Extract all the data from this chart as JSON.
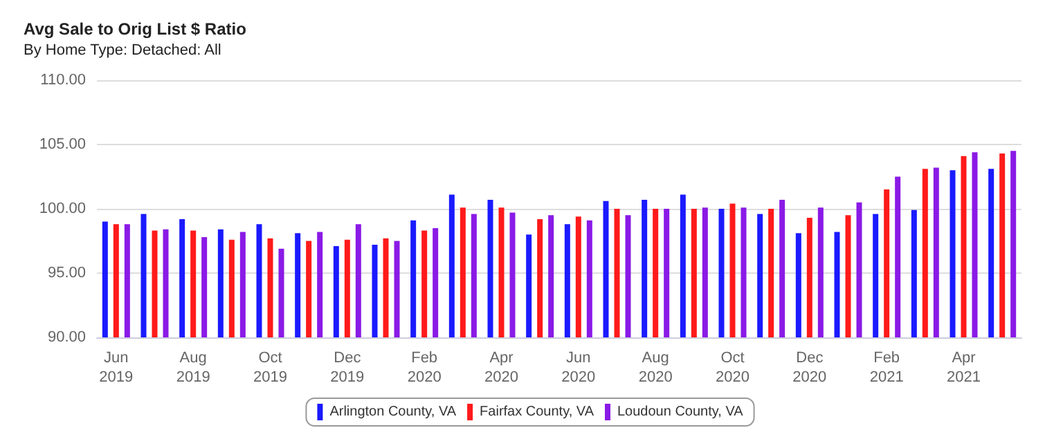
{
  "chart_data": {
    "type": "bar",
    "title": "Avg Sale to Orig List $ Ratio",
    "subtitle": "By Home Type: Detached: All",
    "categories": [
      "Jun\n2019",
      null,
      "Aug\n2019",
      null,
      "Oct\n2019",
      null,
      "Dec\n2019",
      null,
      "Feb\n2020",
      null,
      "Apr\n2020",
      null,
      "Jun\n2020",
      null,
      "Aug\n2020",
      null,
      "Oct\n2020",
      null,
      "Dec\n2020",
      null,
      "Feb\n2021",
      null,
      "Apr\n2021",
      null
    ],
    "series": [
      {
        "name": "Arlington County, VA",
        "color": "#1a1aff",
        "values": [
          99.0,
          99.6,
          99.2,
          98.4,
          98.8,
          98.1,
          97.1,
          97.2,
          99.1,
          101.1,
          100.7,
          98.0,
          98.8,
          100.6,
          100.7,
          101.1,
          100.0,
          99.6,
          98.1,
          98.2,
          99.6,
          99.9,
          103.0,
          103.1
        ]
      },
      {
        "name": "Fairfax County, VA",
        "color": "#ff1a1a",
        "values": [
          98.8,
          98.3,
          98.3,
          97.6,
          97.7,
          97.5,
          97.6,
          97.7,
          98.3,
          100.1,
          100.1,
          99.2,
          99.4,
          100.0,
          100.0,
          100.0,
          100.4,
          100.0,
          99.3,
          99.5,
          101.5,
          103.1,
          104.1,
          104.3
        ]
      },
      {
        "name": "Loudoun County, VA",
        "color": "#8a1ae6",
        "values": [
          98.8,
          98.4,
          97.8,
          98.2,
          96.9,
          98.2,
          98.8,
          97.5,
          98.5,
          99.6,
          99.7,
          99.5,
          99.1,
          99.5,
          100.0,
          100.1,
          100.1,
          100.7,
          100.1,
          100.5,
          102.5,
          103.2,
          104.4,
          104.5
        ]
      }
    ],
    "ylim": [
      90,
      110
    ],
    "yticks": [
      {
        "value": 90,
        "label": "90.00"
      },
      {
        "value": 95,
        "label": "95.00"
      },
      {
        "value": 100,
        "label": "100.00"
      },
      {
        "value": 105,
        "label": "105.00"
      },
      {
        "value": 110,
        "label": "110.00"
      }
    ],
    "grid": "y",
    "legend": "bottom"
  }
}
